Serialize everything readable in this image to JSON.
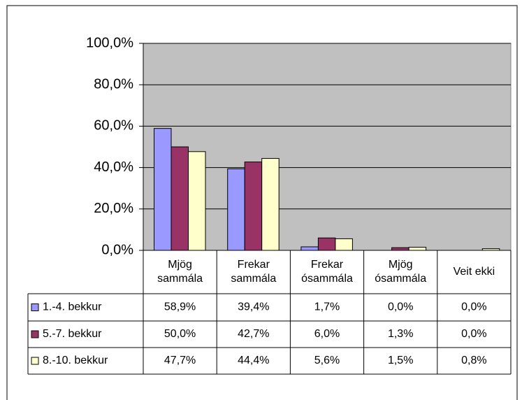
{
  "chart_data": {
    "type": "bar",
    "categories": [
      "Mjög\nsammála",
      "Frekar\nsammála",
      "Frekar\nósammála",
      "Mjög\nósammála",
      "Veit ekki"
    ],
    "series": [
      {
        "name": "1.-4. bekkur",
        "color": "#9999ff",
        "values": [
          58.9,
          39.4,
          1.7,
          0.0,
          0.0
        ],
        "value_labels": [
          "58,9%",
          "39,4%",
          "1,7%",
          "0,0%",
          "0,0%"
        ]
      },
      {
        "name": "5.-7. bekkur",
        "color": "#993366",
        "values": [
          50.0,
          42.7,
          6.0,
          1.3,
          0.0
        ],
        "value_labels": [
          "50,0%",
          "42,7%",
          "6,0%",
          "1,3%",
          "0,0%"
        ]
      },
      {
        "name": "8.-10. bekkur",
        "color": "#ffffcc",
        "values": [
          47.7,
          44.4,
          5.6,
          1.5,
          0.8
        ],
        "value_labels": [
          "47,7%",
          "44,4%",
          "5,6%",
          "1,5%",
          "0,8%"
        ]
      }
    ],
    "ylim": [
      0,
      100
    ],
    "yticks": [
      {
        "value": 0,
        "label": "0,0%"
      },
      {
        "value": 20,
        "label": "20,0%"
      },
      {
        "value": 40,
        "label": "40,0%"
      },
      {
        "value": 60,
        "label": "60,0%"
      },
      {
        "value": 80,
        "label": "80,0%"
      },
      {
        "value": 100,
        "label": "100,0%"
      }
    ],
    "grid": true,
    "plot_background": "#c0c0c0"
  }
}
